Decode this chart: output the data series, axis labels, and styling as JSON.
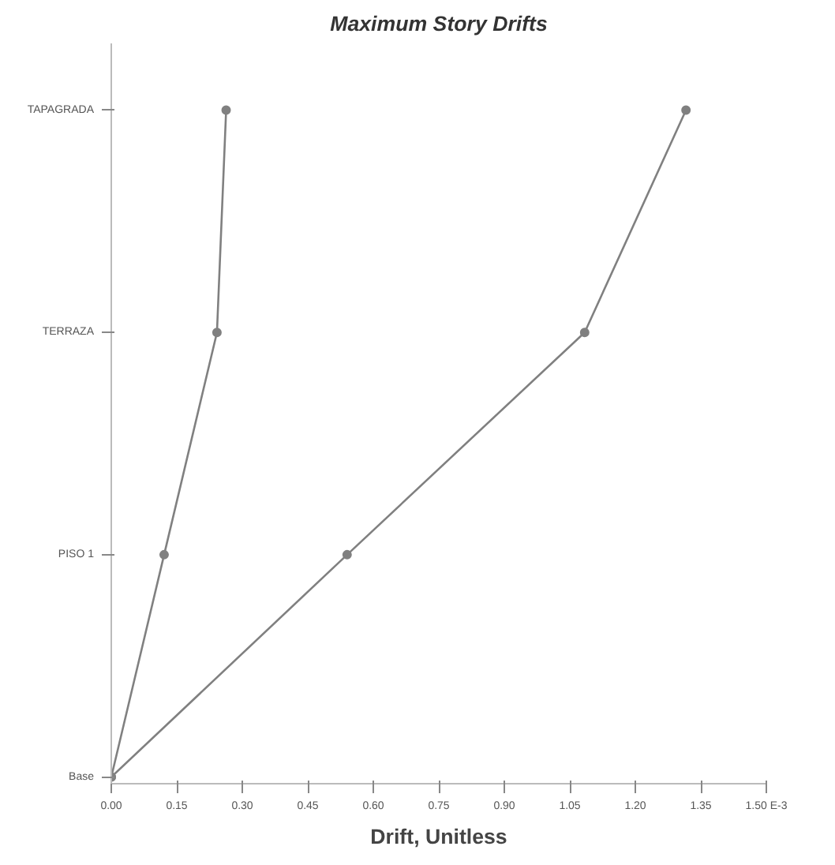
{
  "chart_data": {
    "type": "line",
    "orientation": "horizontal",
    "title": "Maximum Story Drifts",
    "xlabel": "Drift, Unitless",
    "categories": [
      "TAPAGRADA",
      "TERRAZA",
      "PISO 1",
      "Base"
    ],
    "series": [
      {
        "color": "#808080",
        "values": [
          0.263,
          0.242,
          0.121,
          0
        ]
      },
      {
        "color": "#808080",
        "values": [
          1.316,
          1.084,
          0.54,
          0
        ]
      }
    ],
    "xlim": [
      0,
      1.5
    ],
    "xticks": [
      {
        "value": 0,
        "label": "0.00"
      },
      {
        "value": 0.15,
        "label": "0.15"
      },
      {
        "value": 0.3,
        "label": "0.30"
      },
      {
        "value": 0.45,
        "label": "0.45"
      },
      {
        "value": 0.6,
        "label": "0.60"
      },
      {
        "value": 0.75,
        "label": "0.75"
      },
      {
        "value": 0.9,
        "label": "0.90"
      },
      {
        "value": 1.05,
        "label": "1.05"
      },
      {
        "value": 1.2,
        "label": "1.20"
      },
      {
        "value": 1.35,
        "label": "1.35"
      },
      {
        "value": 1.5,
        "label": "1.50 E-3"
      }
    ],
    "marker": "circle",
    "grid": false
  }
}
